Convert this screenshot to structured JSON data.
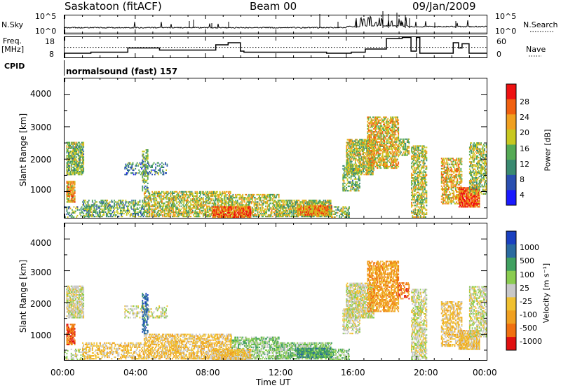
{
  "header": {
    "station": "Saskatoon (fitACF)",
    "beam": "Beam 00",
    "date": "09/Jan/2009"
  },
  "noise_panel": {
    "left_label": "N.Sky",
    "right_label": "N.Search",
    "left_ticks": [
      "10^5",
      "10^0"
    ],
    "right_ticks": [
      "10^5",
      "10^0"
    ]
  },
  "freq_panel": {
    "left_label_1": "Freq.",
    "left_label_2": "[MHz]",
    "left_ticks": [
      "18",
      "8"
    ],
    "right_label": "Nave",
    "right_ticks": [
      "60",
      "0"
    ],
    "cpid_label": "CPID"
  },
  "cpid_text": "normalsound (fast) 157",
  "power_panel": {
    "ylabel": "Slant Range [km]",
    "yticks": [
      "4000",
      "3000",
      "2000",
      "1000"
    ],
    "colorbar_label": "Power [dB]",
    "colorbar_ticks": [
      "28",
      "24",
      "20",
      "16",
      "12",
      "8",
      "4"
    ]
  },
  "velocity_panel": {
    "ylabel": "Slant Range [km]",
    "yticks": [
      "4000",
      "3000",
      "2000",
      "1000"
    ],
    "colorbar_label": "Velocity [m s⁻¹]",
    "colorbar_ticks": [
      "1000",
      "500",
      "100",
      "25",
      "-25",
      "-100",
      "-500",
      "-1000"
    ]
  },
  "xaxis": {
    "label": "Time UT",
    "ticks": [
      "00:00",
      "04:00",
      "08:00",
      "12:00",
      "16:00",
      "20:00",
      "00:00"
    ]
  },
  "colors": {
    "power_scale": [
      "#1a1aff",
      "#2a4fb0",
      "#3a8a70",
      "#55aa55",
      "#c8c820",
      "#f0a020",
      "#f06010",
      "#ee1111"
    ],
    "velocity_scale": [
      "#e01010",
      "#f07010",
      "#f0a020",
      "#f0c030",
      "#c8c8c8",
      "#8acc50",
      "#40a060",
      "#2a6aa0",
      "#1a40c0"
    ]
  },
  "chart_data": {
    "type": "heatmap",
    "x_range_hours": [
      0,
      24
    ],
    "y_range_km": [
      180,
      4500
    ],
    "freq_mhz_steps": [
      [
        0,
        1.5,
        10
      ],
      [
        1.5,
        3.6,
        10.5
      ],
      [
        3.6,
        5.4,
        12.5
      ],
      [
        5.4,
        8.6,
        11.5
      ],
      [
        8.6,
        9.3,
        14
      ],
      [
        9.3,
        10.0,
        15
      ],
      [
        10.0,
        10.2,
        11
      ],
      [
        10.2,
        11.0,
        10.5
      ],
      [
        11.0,
        14.9,
        10.5
      ],
      [
        14.9,
        16.3,
        10
      ],
      [
        16.3,
        17.1,
        10.5
      ],
      [
        17.1,
        18.3,
        12
      ],
      [
        18.3,
        19.2,
        17
      ],
      [
        19.2,
        19.7,
        17.5
      ],
      [
        19.7,
        20.0,
        11
      ],
      [
        20.0,
        20.2,
        17.5
      ],
      [
        20.2,
        21.4,
        10
      ],
      [
        21.4,
        22.1,
        10
      ],
      [
        22.1,
        22.4,
        15
      ],
      [
        22.4,
        22.6,
        12.5
      ],
      [
        22.6,
        23.0,
        14.5
      ],
      [
        23.0,
        24.0,
        10
      ]
    ],
    "nave_reference_mhz": 12.8
  }
}
